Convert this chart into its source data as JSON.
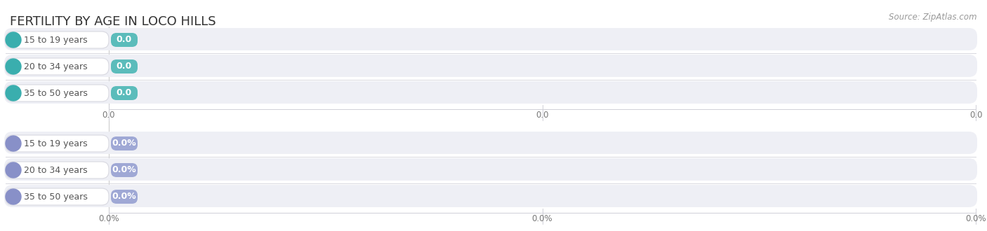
{
  "title": "FERTILITY BY AGE IN LOCO HILLS",
  "source_text": "Source: ZipAtlas.com",
  "background_color": "#ffffff",
  "teal_color": "#5bbcbb",
  "teal_circle_color": "#3aaeae",
  "purple_color": "#9fa8d5",
  "purple_circle_color": "#8890c8",
  "categories": [
    "15 to 19 years",
    "20 to 34 years",
    "35 to 50 years"
  ],
  "labels_top": [
    "0.0",
    "0.0",
    "0.0"
  ],
  "labels_bottom": [
    "0.0%",
    "0.0%",
    "0.0%"
  ],
  "tick_labels_top": [
    "0.0",
    "0.0",
    "0.0"
  ],
  "tick_labels_bottom": [
    "0.0%",
    "0.0%",
    "0.0%"
  ],
  "title_fontsize": 13,
  "label_fontsize": 9,
  "tick_fontsize": 8.5,
  "source_fontsize": 8.5
}
